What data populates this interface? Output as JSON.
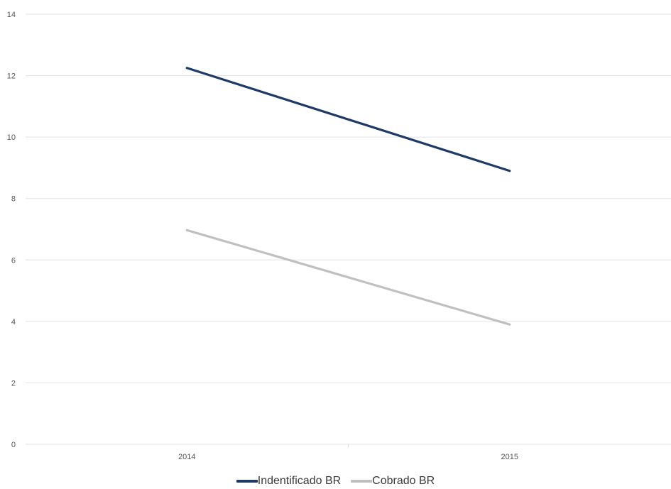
{
  "chart_data": {
    "type": "line",
    "title": "",
    "xlabel": "",
    "ylabel": "",
    "categories": [
      "2014",
      "2015"
    ],
    "ylim": [
      0,
      14
    ],
    "yticks": [
      "0",
      "2",
      "4",
      "6",
      "8",
      "10",
      "12",
      "14"
    ],
    "grid": true,
    "legend_position": "bottom",
    "series": [
      {
        "name": "Indentificado BR",
        "values": [
          12.25,
          8.9
        ],
        "color": "#1f3a68"
      },
      {
        "name": "Cobrado BR",
        "values": [
          6.97,
          3.9
        ],
        "color": "#c0c0c0"
      }
    ]
  },
  "legend": {
    "items": [
      {
        "label": "Indentificado BR",
        "color": "#1f3a68"
      },
      {
        "label": "Cobrado BR",
        "color": "#c0c0c0"
      }
    ]
  }
}
